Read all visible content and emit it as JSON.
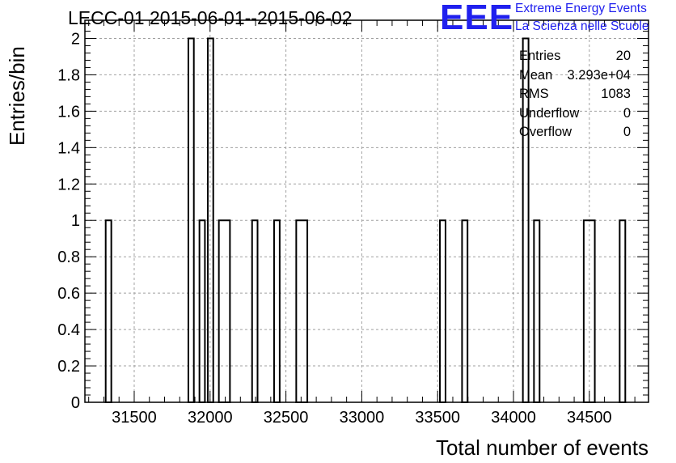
{
  "chart_data": {
    "type": "bar",
    "title": "LECC-01 2015-06-01--2015-06-02",
    "xlabel": "Total number of events",
    "ylabel": "Entries/bin",
    "xlim": [
      31175,
      34890
    ],
    "ylim": [
      0,
      2.1
    ],
    "xticks": [
      31500,
      32000,
      32500,
      33000,
      33500,
      34000,
      34500
    ],
    "yticks": [
      0,
      0.2,
      0.4,
      0.6,
      0.8,
      1,
      1.2,
      1.4,
      1.6,
      1.8,
      2
    ],
    "ytick_labels": [
      "0",
      "0.2",
      "0.4",
      "0.6",
      "0.8",
      "1",
      "1.2",
      "1.4",
      "1.6",
      "1.8",
      "2"
    ],
    "grid": true,
    "histogram_style": "step",
    "bins": [
      {
        "x0": 31312,
        "x1": 31349,
        "count": 1
      },
      {
        "x0": 31857,
        "x1": 31893,
        "count": 2
      },
      {
        "x0": 31930,
        "x1": 31966,
        "count": 1
      },
      {
        "x0": 31985,
        "x1": 32021,
        "count": 2
      },
      {
        "x0": 32058,
        "x1": 32131,
        "count": 1
      },
      {
        "x0": 32277,
        "x1": 32313,
        "count": 1
      },
      {
        "x0": 32422,
        "x1": 32459,
        "count": 1
      },
      {
        "x0": 32568,
        "x1": 32641,
        "count": 1
      },
      {
        "x0": 33515,
        "x1": 33552,
        "count": 1
      },
      {
        "x0": 33661,
        "x1": 33697,
        "count": 1
      },
      {
        "x0": 34062,
        "x1": 34099,
        "count": 2
      },
      {
        "x0": 34135,
        "x1": 34172,
        "count": 1
      },
      {
        "x0": 34463,
        "x1": 34536,
        "count": 1
      },
      {
        "x0": 34700,
        "x1": 34737,
        "count": 1
      }
    ],
    "stats": [
      {
        "label": "Entries",
        "value": "20"
      },
      {
        "label": "Mean",
        "value": "3.293e+04"
      },
      {
        "label": "RMS",
        "value": "1083"
      },
      {
        "label": "Underflow",
        "value": "0"
      },
      {
        "label": "Overflow",
        "value": "0"
      }
    ],
    "legend_position": "top-right",
    "colors": {
      "line": "#000000",
      "grid": "#a0a0a0",
      "logo": "#2020ee"
    }
  },
  "logo": {
    "mark": "EEE",
    "line1": "Extreme Energy Events",
    "line2": "La Scienza nelle Scuole"
  }
}
